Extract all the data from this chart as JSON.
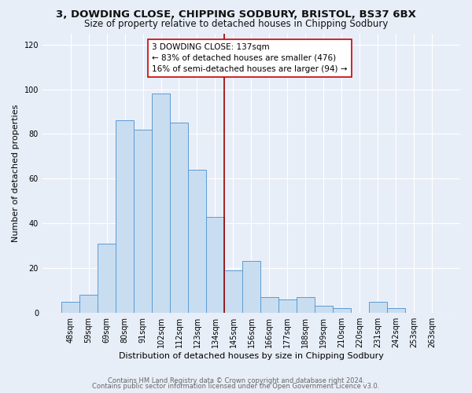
{
  "title1": "3, DOWDING CLOSE, CHIPPING SODBURY, BRISTOL, BS37 6BX",
  "title2": "Size of property relative to detached houses in Chipping Sodbury",
  "xlabel": "Distribution of detached houses by size in Chipping Sodbury",
  "ylabel": "Number of detached properties",
  "bin_labels": [
    "48sqm",
    "59sqm",
    "69sqm",
    "80sqm",
    "91sqm",
    "102sqm",
    "112sqm",
    "123sqm",
    "134sqm",
    "145sqm",
    "156sqm",
    "166sqm",
    "177sqm",
    "188sqm",
    "199sqm",
    "210sqm",
    "220sqm",
    "231sqm",
    "242sqm",
    "253sqm",
    "263sqm"
  ],
  "bar_heights": [
    5,
    8,
    31,
    86,
    82,
    98,
    85,
    64,
    43,
    19,
    23,
    7,
    6,
    7,
    3,
    2,
    0,
    5,
    2,
    0,
    0
  ],
  "bar_color": "#c9ddf0",
  "bar_edge_color": "#5b9bd5",
  "vline_x": 8.5,
  "vline_color": "#990000",
  "annotation_text": "3 DOWDING CLOSE: 137sqm\n← 83% of detached houses are smaller (476)\n16% of semi-detached houses are larger (94) →",
  "annotation_box_color": "#ffffff",
  "annotation_box_edge": "#cc0000",
  "ylim": [
    0,
    125
  ],
  "yticks": [
    0,
    20,
    40,
    60,
    80,
    100,
    120
  ],
  "footer1": "Contains HM Land Registry data © Crown copyright and database right 2024.",
  "footer2": "Contains public sector information licensed under the Open Government Licence v3.0.",
  "bg_color": "#e8eef8",
  "plot_bg_color": "#e8eef8",
  "grid_color": "#ffffff",
  "title1_fontsize": 9.5,
  "title2_fontsize": 8.5,
  "xlabel_fontsize": 8,
  "ylabel_fontsize": 8,
  "footer_fontsize": 6,
  "tick_fontsize": 7,
  "annot_fontsize": 7.5
}
